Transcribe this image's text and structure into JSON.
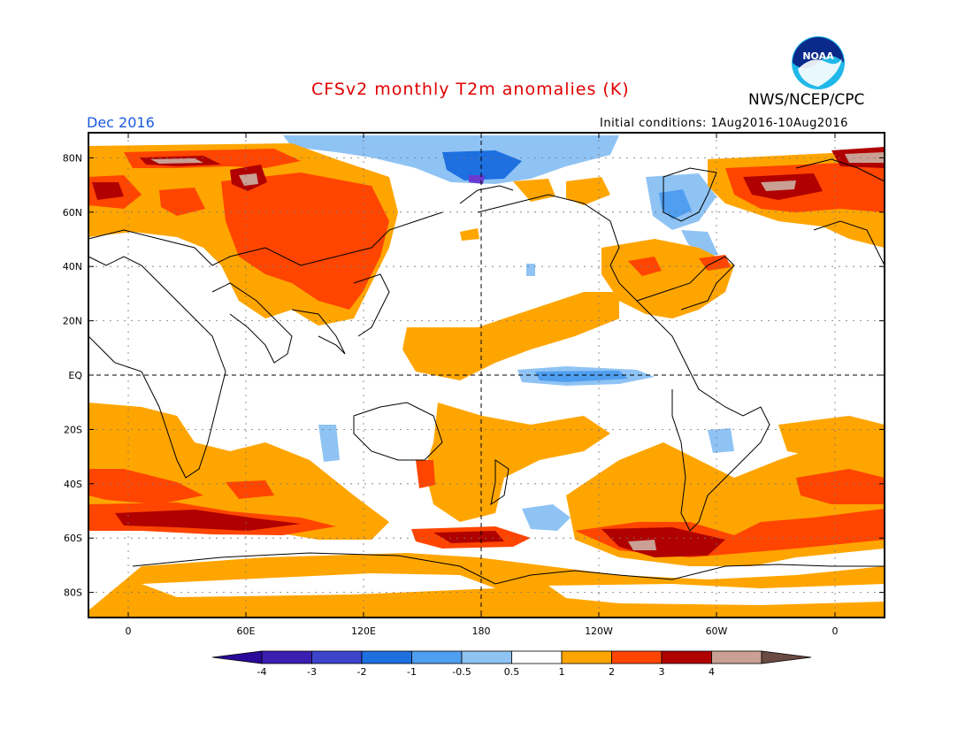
{
  "header": {
    "title": "CFSv2 monthly T2m anomalies (K)",
    "organization": "NWS/NCEP/CPC",
    "logo_text": "NOAA",
    "valid_month": "Dec 2016",
    "initial_conditions": "Initial conditions: 1Aug2016-10Aug2016"
  },
  "map": {
    "lat_labels": [
      "80N",
      "60N",
      "40N",
      "20N",
      "EQ",
      "20S",
      "40S",
      "60S",
      "80S"
    ],
    "lon_labels": [
      "0",
      "60E",
      "120E",
      "180",
      "120W",
      "60W",
      "0"
    ]
  },
  "colorbar": {
    "labels": [
      "-4",
      "-3",
      "-2",
      "-1",
      "-0.5",
      "0.5",
      "1",
      "2",
      "3",
      "4"
    ],
    "colors": [
      "#3a1fb0",
      "#3d44cc",
      "#1e6fe0",
      "#4f9ef0",
      "#8fc3f4",
      "#ffffff",
      "#ffa500",
      "#ff4500",
      "#b00000",
      "#c9a093"
    ],
    "end_colors": {
      "low": "#2a0a9a",
      "high": "#6b4a44"
    }
  },
  "colors": {
    "title": "#e00000",
    "month": "#1a5ae0",
    "warm1": "#ffa500",
    "warm2": "#ff4500",
    "warm3": "#b00000",
    "warm4": "#c9a093",
    "cool1": "#8fc3f4",
    "cool2": "#4f9ef0",
    "cool3": "#1e6fe0"
  }
}
